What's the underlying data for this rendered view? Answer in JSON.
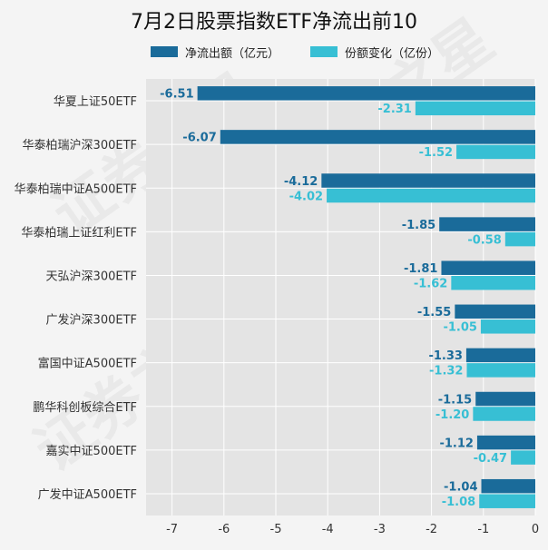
{
  "watermark": "证券之星",
  "colors": {
    "outflow": "#1a6b9a",
    "share": "#37bfd4",
    "plot_bg": "#e4e4e4",
    "grid": "#ffffff"
  },
  "chart_data": {
    "type": "bar",
    "orientation": "horizontal",
    "title": "7月2日股票指数ETF净流出前10",
    "categories": [
      "华夏上证50ETF",
      "华泰柏瑞沪深300ETF",
      "华泰柏瑞中证A500ETF",
      "华泰柏瑞上证红利ETF",
      "天弘沪深300ETF",
      "广发沪深300ETF",
      "富国中证A500ETF",
      "鹏华科创板综合ETF",
      "嘉实中证500ETF",
      "广发中证A500ETF"
    ],
    "series": [
      {
        "name": "净流出额（亿元）",
        "color": "#1a6b9a",
        "values": [
          -6.51,
          -6.07,
          -4.12,
          -1.85,
          -1.81,
          -1.55,
          -1.33,
          -1.15,
          -1.12,
          -1.04
        ]
      },
      {
        "name": "份额变化（亿份）",
        "color": "#37bfd4",
        "values": [
          -2.31,
          -1.52,
          -4.02,
          -0.58,
          -1.62,
          -1.05,
          -1.32,
          -1.2,
          -0.47,
          -1.08
        ]
      }
    ],
    "xlim": [
      -7.5,
      0
    ],
    "xticks": [
      -7,
      -6,
      -5,
      -4,
      -3,
      -2,
      -1,
      0
    ],
    "grid": true,
    "legend_position": "top"
  }
}
